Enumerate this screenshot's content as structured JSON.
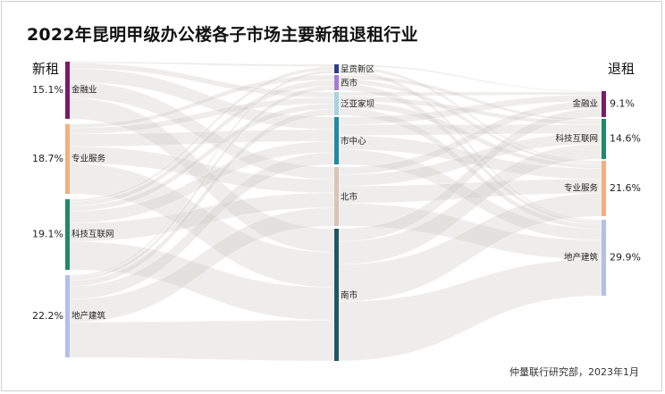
{
  "title": "2022年昆明甲级办公楼各子市场主要新租退租行业",
  "left_heading": "新租",
  "right_heading": "退租",
  "source": "仲量联行研究部，2023年1月",
  "chart_data": {
    "type": "sankey",
    "left_nodes": [
      {
        "name": "金融业",
        "value_label": "15.1%",
        "value": 15.1,
        "color": "#7b1a6b"
      },
      {
        "name": "专业服务",
        "value_label": "18.7%",
        "value": 18.7,
        "color": "#f1b07f"
      },
      {
        "name": "科技互联网",
        "value_label": "19.1%",
        "value": 19.1,
        "color": "#1f8a66"
      },
      {
        "name": "地产建筑",
        "value_label": "22.2%",
        "value": 22.2,
        "color": "#b4bfe8"
      }
    ],
    "middle_nodes": [
      {
        "name": "呈贡新区",
        "color": "#2d3f8a"
      },
      {
        "name": "西市",
        "color": "#a77bd6"
      },
      {
        "name": "泛亚家坝",
        "color": "#a9d3de"
      },
      {
        "name": "市中心",
        "color": "#1d8aa6"
      },
      {
        "name": "北市",
        "color": "#dac4b8"
      },
      {
        "name": "南市",
        "color": "#1f5863"
      }
    ],
    "right_nodes": [
      {
        "name": "金融业",
        "value_label": "9.1%",
        "value": 9.1,
        "color": "#7b1a6b"
      },
      {
        "name": "科技互联网",
        "value_label": "14.6%",
        "value": 14.6,
        "color": "#1f8a66"
      },
      {
        "name": "专业服务",
        "value_label": "21.6%",
        "value": 21.6,
        "color": "#f1b07f"
      },
      {
        "name": "地产建筑",
        "value_label": "29.9%",
        "value": 29.9,
        "color": "#b4bfe8"
      }
    ],
    "link_color": "#cdcac3"
  }
}
